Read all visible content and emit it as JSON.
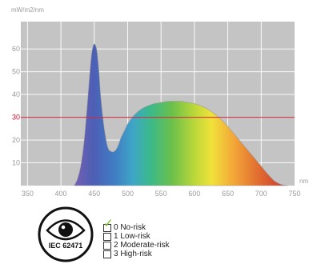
{
  "chart_data": {
    "type": "area",
    "ylabel": "mW/m2/nm",
    "xlabel": "nm",
    "xlim": [
      340,
      750
    ],
    "ylim": [
      0,
      72
    ],
    "x_ticks": [
      350,
      400,
      450,
      500,
      550,
      600,
      650,
      700,
      750
    ],
    "y_ticks": [
      10,
      20,
      30,
      40,
      50,
      60
    ],
    "threshold": {
      "value": 30,
      "color": "#d7263d"
    },
    "grid": true,
    "fill": "visible-spectrum-gradient",
    "series": [
      {
        "x": [
          420,
          425,
          430,
          435,
          440,
          445,
          448,
          451,
          454,
          457,
          460,
          465,
          470,
          475,
          480,
          485,
          490,
          495,
          500,
          510,
          520,
          530,
          540,
          550,
          560,
          570,
          580,
          590,
          600,
          610,
          620,
          630,
          640,
          650,
          660,
          670,
          680,
          690,
          700,
          710,
          720,
          730,
          740
        ],
        "y": [
          0,
          3,
          9,
          20,
          37,
          55,
          61,
          62,
          59,
          50,
          38,
          25,
          17,
          15,
          15,
          17,
          21,
          24,
          27,
          31,
          33.5,
          35,
          36,
          36.5,
          37,
          37,
          37,
          36.5,
          36,
          35,
          33.5,
          31.5,
          29,
          26,
          22.5,
          19,
          15.5,
          12,
          8.5,
          5,
          2,
          0.5,
          0
        ]
      }
    ]
  },
  "badge": {
    "icon": "eye-icon",
    "label": "IEC 62471"
  },
  "risk_groups": [
    {
      "label": "0 No-risk",
      "checked": true
    },
    {
      "label": "1 Low-risk",
      "checked": false
    },
    {
      "label": "2 Moderate-risk",
      "checked": false
    },
    {
      "label": "3 High-risk",
      "checked": false
    }
  ],
  "colors": {
    "check": "#76b82a",
    "grid": "#ffffff",
    "plot_background": "#c4c4c4"
  }
}
